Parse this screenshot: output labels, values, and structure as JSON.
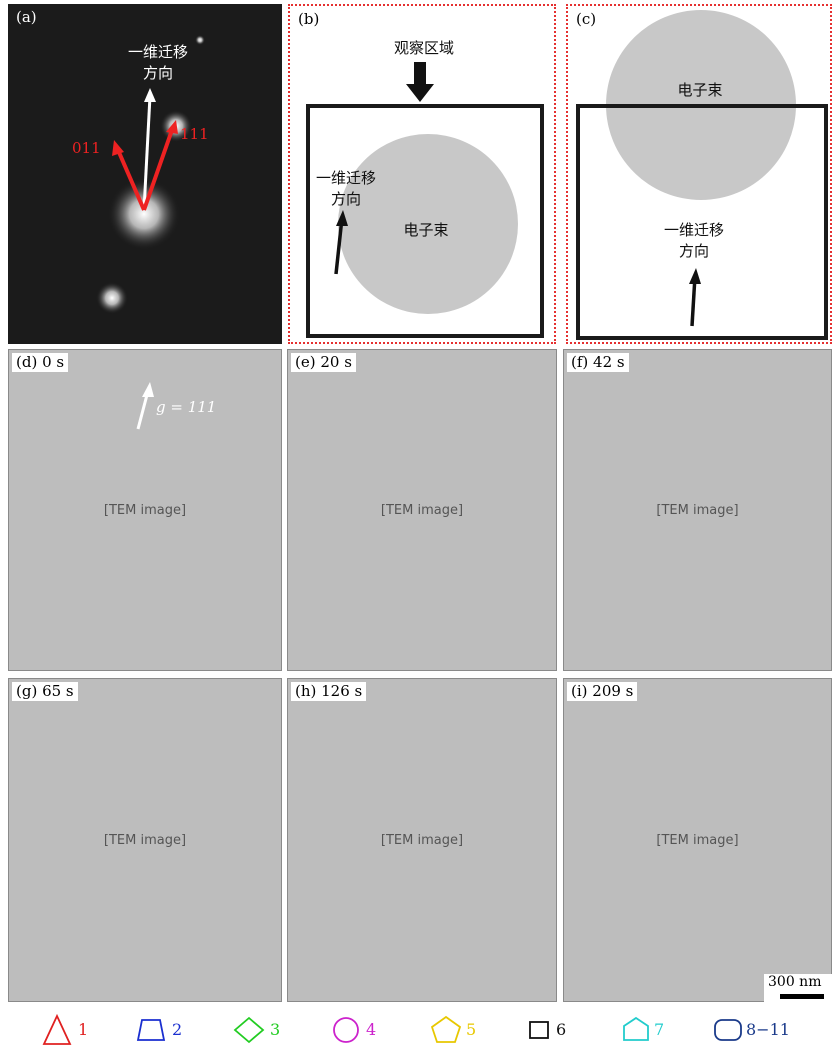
{
  "panels": {
    "a": {
      "label": "(a)",
      "direction": "一维迁移\n方向",
      "g1": "011",
      "g2": "111"
    },
    "b": {
      "label": "(b)",
      "observe": "观察区域",
      "direction": "一维迁移\n方向",
      "beam": "电子束"
    },
    "c": {
      "label": "(c)",
      "beam": "电子束",
      "direction": "一维迁移\n方向"
    }
  },
  "micrographs": [
    {
      "label": "(d) 0 s",
      "g_label": "g = 111"
    },
    {
      "label": "(e) 20 s"
    },
    {
      "label": "(f) 42 s"
    },
    {
      "label": "(g) 65 s"
    },
    {
      "label": "(h) 126 s"
    },
    {
      "label": "(i) 209 s"
    }
  ],
  "micrograph_placeholder": "[TEM image]",
  "scale_bar": "300 nm",
  "legend": [
    {
      "icon": "triangle-icon",
      "label": "1",
      "color": "#e02020"
    },
    {
      "icon": "trapezoid-icon",
      "label": "2",
      "color": "#1a2fd0"
    },
    {
      "icon": "diamond-icon",
      "label": "3",
      "color": "#22cc22"
    },
    {
      "icon": "circle-icon",
      "label": "4",
      "color": "#cc22cc"
    },
    {
      "icon": "pentagon-icon",
      "label": "5",
      "color": "#e8c800"
    },
    {
      "icon": "square-icon",
      "label": "6",
      "color": "#111111"
    },
    {
      "icon": "house-pentagon-icon",
      "label": "7",
      "color": "#22cccc"
    },
    {
      "icon": "rounded-rect-icon",
      "label": "8−11",
      "color": "#1a3a8a"
    }
  ]
}
